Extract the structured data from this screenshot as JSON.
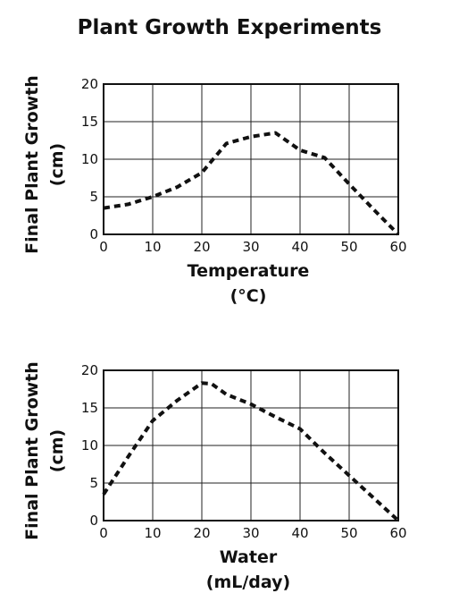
{
  "title": "Plant Growth Experiments",
  "chart_data": [
    {
      "type": "line",
      "xlabel": [
        "Temperature",
        "(°C)"
      ],
      "ylabel": [
        "Final Plant Growth",
        "(cm)"
      ],
      "xlim": [
        0,
        60
      ],
      "ylim": [
        0,
        20
      ],
      "xticks": [
        0,
        10,
        20,
        30,
        40,
        50,
        60
      ],
      "yticks": [
        0,
        5,
        10,
        15,
        20
      ],
      "grid": true,
      "series": [
        {
          "x": [
            0,
            5,
            10,
            15,
            20,
            25,
            30,
            35,
            40,
            45,
            50,
            55,
            60
          ],
          "y": [
            3.5,
            4,
            5,
            6.3,
            8.2,
            12.1,
            13,
            13.5,
            11.2,
            10.2,
            6.7,
            3.3,
            0
          ]
        }
      ]
    },
    {
      "type": "line",
      "xlabel": [
        "Water",
        "(mL/day)"
      ],
      "ylabel": [
        "Final Plant Growth",
        "(cm)"
      ],
      "xlim": [
        0,
        60
      ],
      "ylim": [
        0,
        20
      ],
      "xticks": [
        0,
        10,
        20,
        30,
        40,
        50,
        60
      ],
      "yticks": [
        0,
        5,
        10,
        15,
        20
      ],
      "grid": true,
      "series": [
        {
          "x": [
            0,
            5,
            10,
            15,
            20,
            22,
            25,
            30,
            35,
            40,
            45,
            50,
            55,
            60
          ],
          "y": [
            3.5,
            8.5,
            13.3,
            16,
            18.3,
            18.2,
            16.8,
            15.5,
            13.8,
            12.2,
            9,
            6,
            3,
            0
          ]
        }
      ]
    }
  ]
}
